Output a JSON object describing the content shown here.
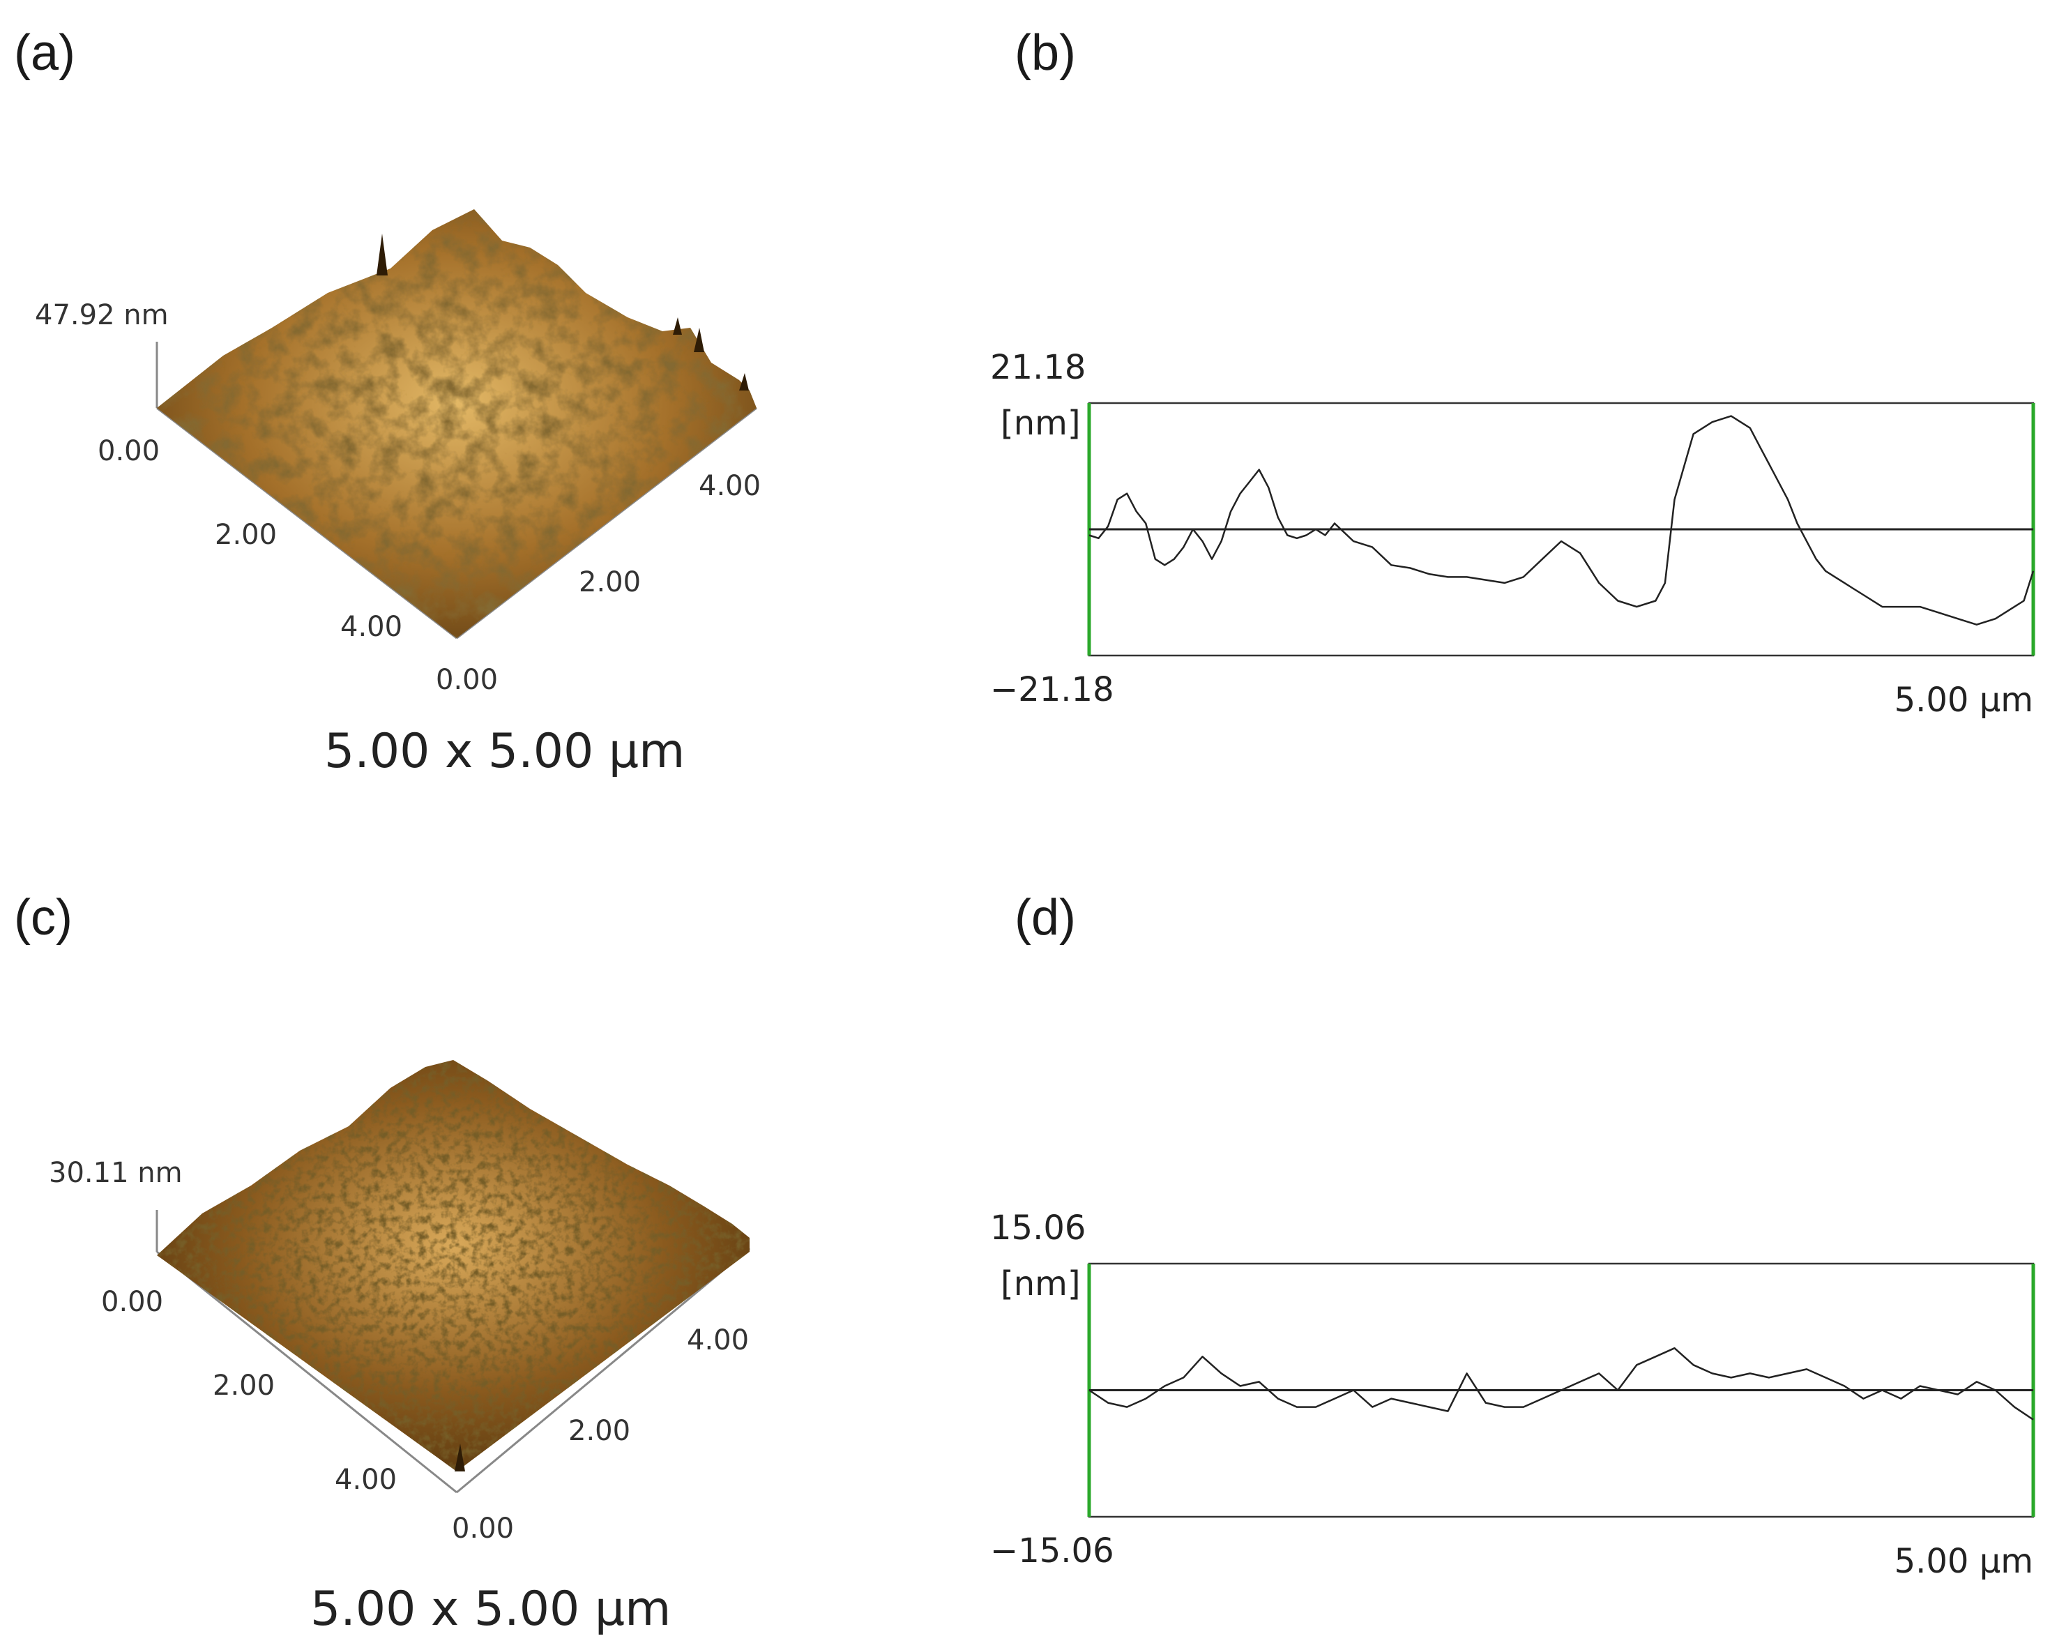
{
  "panels": {
    "a": {
      "label": "(a)",
      "z_max": "47.92 nm",
      "z_min": "0.00",
      "axis1": [
        "2.00",
        "4.00"
      ],
      "axis2": [
        "0.00",
        "2.00",
        "4.00"
      ],
      "scan_size": "5.00 x 5.00 μm",
      "colors": {
        "light": "#e3b866",
        "mid": "#a4702a",
        "dark": "#3a2408"
      }
    },
    "b": {
      "label": "(b)"
    },
    "c": {
      "label": "(c)",
      "z_max": "30.11 nm",
      "z_min": "0.00",
      "axis1": [
        "2.00",
        "4.00"
      ],
      "axis2": [
        "0.00",
        "2.00",
        "4.00"
      ],
      "scan_size": "5.00 x 5.00 μm",
      "colors": {
        "light": "#d9a95a",
        "mid": "#8a5a1e",
        "dark": "#2e1c06"
      }
    },
    "d": {
      "label": "(d)"
    }
  },
  "chart_data": [
    {
      "type": "line",
      "panel": "b",
      "y_unit": "[nm]",
      "ymax_label": "21.18",
      "ymin_label": "−21.18",
      "x_end_label": "5.00 μm",
      "ylim": [
        -21.18,
        21.18
      ],
      "xlim": [
        0,
        5.0
      ],
      "series": [
        {
          "x": [
            0,
            0.05,
            0.1,
            0.15,
            0.2,
            0.25,
            0.3,
            0.35,
            0.4,
            0.45,
            0.5,
            0.55,
            0.6,
            0.65,
            0.7,
            0.75,
            0.8,
            0.85,
            0.9,
            0.95,
            1.0,
            1.05,
            1.1,
            1.15,
            1.2,
            1.25,
            1.3,
            1.4,
            1.5,
            1.6,
            1.7,
            1.75,
            1.8,
            1.9,
            2.0,
            2.1,
            2.2,
            2.3,
            2.4,
            2.5,
            2.6,
            2.7,
            2.8,
            2.9,
            3.0,
            3.05,
            3.1,
            3.2,
            3.3,
            3.4,
            3.5,
            3.55,
            3.6,
            3.65,
            3.7,
            3.75,
            3.8,
            3.85,
            3.9,
            3.95,
            4.0,
            4.05,
            4.1,
            4.2,
            4.3,
            4.4,
            4.5,
            4.6,
            4.7,
            4.8,
            4.9,
            4.95,
            5.0
          ],
          "y": [
            -1,
            -1.5,
            0.5,
            5,
            6,
            3,
            1,
            -5,
            -6,
            -5,
            -3,
            0,
            -2,
            -5,
            -2,
            3,
            6,
            8,
            10,
            7,
            2,
            -1,
            -1.5,
            -1,
            0,
            -1,
            1,
            -2,
            -3,
            -6,
            -6.5,
            -7,
            -7.5,
            -8,
            -8,
            -8.5,
            -9,
            -8,
            -5,
            -2,
            -4,
            -9,
            -12,
            -13,
            -12,
            -9,
            5,
            16,
            18,
            19,
            17,
            14,
            11,
            8,
            5,
            1,
            -2,
            -5,
            -7,
            -8,
            -9,
            -10,
            -11,
            -13,
            -13,
            -13,
            -14,
            -15,
            -16,
            -15,
            -13,
            -12,
            -7
          ]
        }
      ],
      "zero_line": 0
    },
    {
      "type": "line",
      "panel": "d",
      "y_unit": "[nm]",
      "ymax_label": "15.06",
      "ymin_label": "−15.06",
      "x_end_label": "5.00 μm",
      "ylim": [
        -15.06,
        15.06
      ],
      "xlim": [
        0,
        5.0
      ],
      "series": [
        {
          "x": [
            0,
            0.1,
            0.2,
            0.3,
            0.4,
            0.5,
            0.6,
            0.7,
            0.8,
            0.9,
            1.0,
            1.1,
            1.2,
            1.3,
            1.4,
            1.5,
            1.6,
            1.7,
            1.8,
            1.9,
            2.0,
            2.1,
            2.2,
            2.3,
            2.4,
            2.5,
            2.6,
            2.7,
            2.8,
            2.9,
            3.0,
            3.1,
            3.2,
            3.3,
            3.4,
            3.5,
            3.6,
            3.7,
            3.8,
            3.9,
            4.0,
            4.1,
            4.2,
            4.3,
            4.4,
            4.5,
            4.6,
            4.7,
            4.8,
            4.9,
            5.0
          ],
          "y": [
            0,
            -1.5,
            -2,
            -1,
            0.5,
            1.5,
            4,
            2,
            0.5,
            1,
            -1,
            -2,
            -2,
            -1,
            0,
            -2,
            -1,
            -1.5,
            -2,
            -2.5,
            2,
            -1.5,
            -2,
            -2,
            -1,
            0,
            1,
            2,
            0,
            3,
            4,
            5,
            3,
            2,
            1.5,
            2,
            1.5,
            2,
            2.5,
            1.5,
            0.5,
            -1,
            0,
            -1,
            0.5,
            0,
            -0.5,
            1,
            0,
            -2,
            -3.5
          ]
        }
      ],
      "zero_line": 0
    }
  ]
}
